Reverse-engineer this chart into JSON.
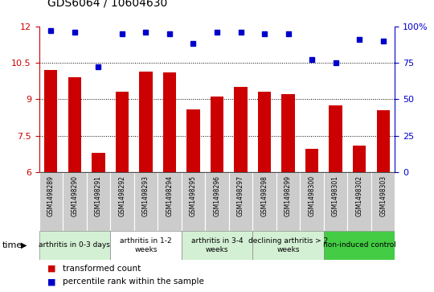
{
  "title": "GDS6064 / 10604630",
  "samples": [
    "GSM1498289",
    "GSM1498290",
    "GSM1498291",
    "GSM1498292",
    "GSM1498293",
    "GSM1498294",
    "GSM1498295",
    "GSM1498296",
    "GSM1498297",
    "GSM1498298",
    "GSM1498299",
    "GSM1498300",
    "GSM1498301",
    "GSM1498302",
    "GSM1498303"
  ],
  "bar_values": [
    10.2,
    9.9,
    6.8,
    9.3,
    10.15,
    10.1,
    8.6,
    9.1,
    9.5,
    9.3,
    9.2,
    6.95,
    8.75,
    7.1,
    8.55
  ],
  "percentile_values": [
    97,
    96,
    72,
    95,
    96,
    95,
    88,
    96,
    96,
    95,
    95,
    77,
    75,
    91,
    90
  ],
  "bar_color": "#cc0000",
  "percentile_color": "#0000cc",
  "ylim_left": [
    6,
    12
  ],
  "ylim_right": [
    0,
    100
  ],
  "yticks_left": [
    6,
    7.5,
    9,
    10.5,
    12
  ],
  "yticks_right": [
    0,
    25,
    50,
    75,
    100
  ],
  "groups": [
    {
      "label": "arthritis in 0-3 days",
      "start": 0,
      "end": 3,
      "color": "#d4f0d4"
    },
    {
      "label": "arthritis in 1-2\nweeks",
      "start": 3,
      "end": 6,
      "color": "#ffffff"
    },
    {
      "label": "arthritis in 3-4\nweeks",
      "start": 6,
      "end": 9,
      "color": "#d4f0d4"
    },
    {
      "label": "declining arthritis > 2\nweeks",
      "start": 9,
      "end": 12,
      "color": "#d4f0d4"
    },
    {
      "label": "non-induced control",
      "start": 12,
      "end": 15,
      "color": "#44cc44"
    }
  ],
  "time_label": "time",
  "legend_bar_label": "transformed count",
  "legend_dot_label": "percentile rank within the sample",
  "tick_color_left": "#cc0000",
  "tick_color_right": "#0000cc",
  "sample_box_color": "#cccccc"
}
